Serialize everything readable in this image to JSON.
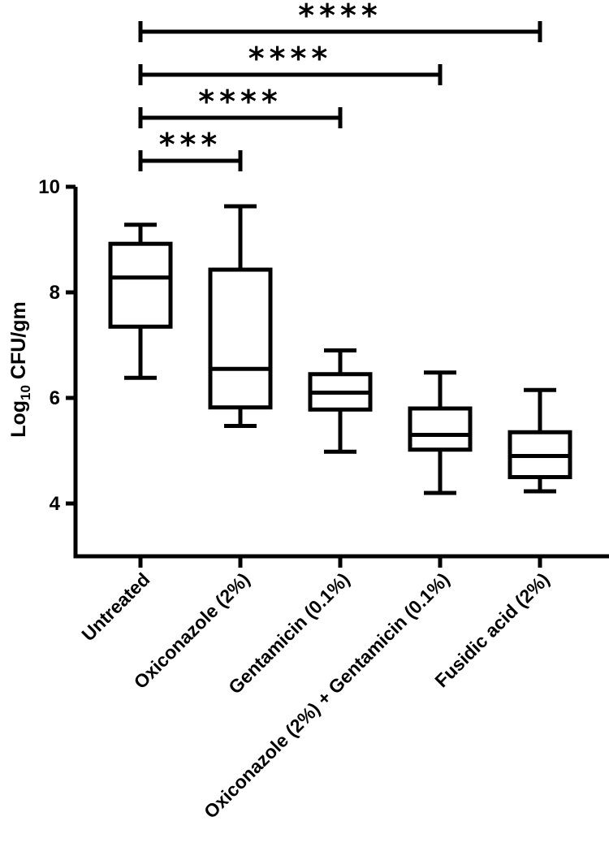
{
  "chart_data": {
    "type": "box",
    "title": "",
    "xlabel": "",
    "ylabel": {
      "prefix": "Log",
      "subscript": "10",
      "suffix": " CFU/gm"
    },
    "ylim": [
      3,
      10
    ],
    "yticks": [
      4,
      6,
      8,
      10
    ],
    "grid": false,
    "categories": [
      "Untreated",
      "Oxiconazole (2%)",
      "Gentamicin (0.1%)",
      "Oxiconazole (2%) + Gentamicin (0.1%)",
      "Fusidic acid (2%)"
    ],
    "boxes": [
      {
        "min": 6.38,
        "q1": 7.35,
        "median": 8.28,
        "q3": 8.92,
        "max": 9.28
      },
      {
        "min": 5.47,
        "q1": 5.82,
        "median": 6.55,
        "q3": 8.43,
        "max": 9.63
      },
      {
        "min": 4.98,
        "q1": 5.78,
        "median": 6.1,
        "q3": 6.45,
        "max": 6.9
      },
      {
        "min": 4.2,
        "q1": 5.02,
        "median": 5.3,
        "q3": 5.8,
        "max": 6.48
      },
      {
        "min": 4.23,
        "q1": 4.5,
        "median": 4.9,
        "q3": 5.35,
        "max": 6.15
      }
    ],
    "significance": [
      {
        "from": 0,
        "to": 1,
        "label": "***"
      },
      {
        "from": 0,
        "to": 2,
        "label": "****"
      },
      {
        "from": 0,
        "to": 3,
        "label": "****"
      },
      {
        "from": 0,
        "to": 4,
        "label": "****"
      }
    ]
  }
}
